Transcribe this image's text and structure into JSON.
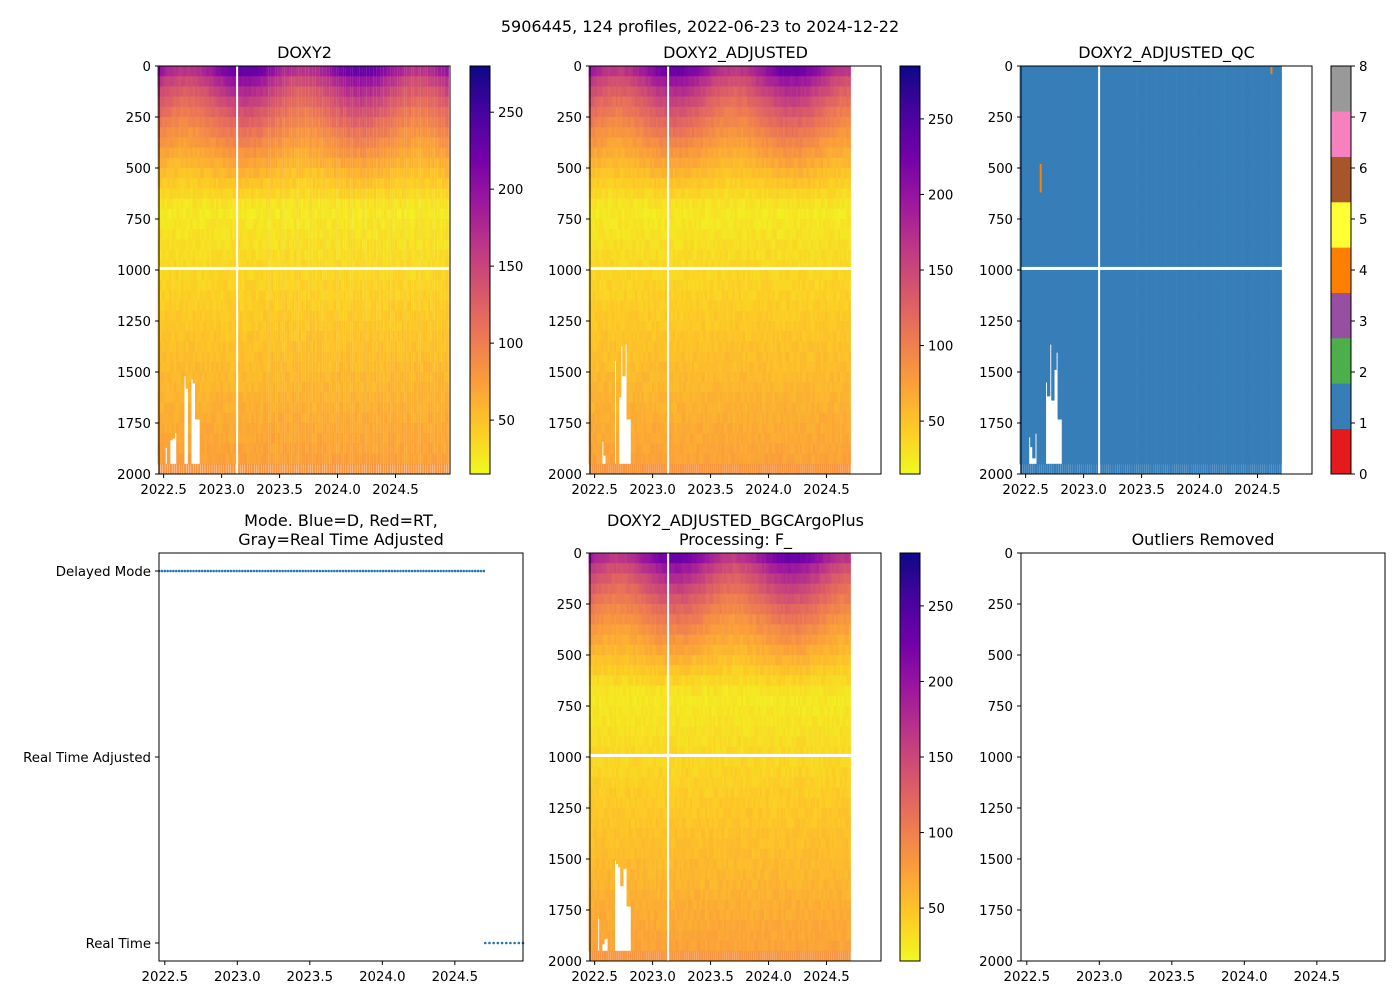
{
  "figure": {
    "suptitle": "5906445, 124 profiles, 2022-06-23 to 2024-12-22",
    "profile_count": 124,
    "date_start": "2022-06-23",
    "date_end": "2024-12-22"
  },
  "colors": {
    "mode_points": "#1f77b4",
    "plasma_stops": [
      "#f0f921",
      "#fdca26",
      "#fb9f3a",
      "#ed7953",
      "#d8576b",
      "#bd3786",
      "#9c179e",
      "#7201a8",
      "#46039f",
      "#0d0887"
    ],
    "qc_classes": [
      "#e41a1c",
      "#377eb8",
      "#4daf4a",
      "#984ea3",
      "#ff7f00",
      "#ffff33",
      "#a65628",
      "#f781bf",
      "#999999"
    ]
  },
  "chart_data": [
    {
      "id": "doxy2",
      "type": "heatmap",
      "title": "DOXY2",
      "xlim": [
        2022.46,
        2024.97
      ],
      "ylim": [
        2000,
        0
      ],
      "xticks": [
        "2022.5",
        "2023.0",
        "2023.5",
        "2024.0",
        "2024.5"
      ],
      "yticks": [
        "0",
        "250",
        "500",
        "750",
        "1000",
        "1250",
        "1500",
        "1750",
        "2000"
      ],
      "colorbar": {
        "cmap": "plasma_r",
        "range": [
          15,
          280
        ],
        "ticks": [
          "50",
          "100",
          "150",
          "200",
          "250"
        ]
      },
      "profiles_end": 2024.95
    },
    {
      "id": "doxy2_adjusted",
      "type": "heatmap",
      "title": "DOXY2_ADJUSTED",
      "xlim": [
        2022.46,
        2024.97
      ],
      "ylim": [
        2000,
        0
      ],
      "xticks": [
        "2022.5",
        "2023.0",
        "2023.5",
        "2024.0",
        "2024.5"
      ],
      "yticks": [
        "0",
        "250",
        "500",
        "750",
        "1000",
        "1250",
        "1500",
        "1750",
        "2000"
      ],
      "colorbar": {
        "cmap": "plasma_r",
        "range": [
          15,
          285
        ],
        "ticks": [
          "50",
          "100",
          "150",
          "200",
          "250"
        ]
      },
      "profiles_end": 2024.7
    },
    {
      "id": "doxy2_adjusted_qc",
      "type": "heatmap",
      "title": "DOXY2_ADJUSTED_QC",
      "xlim": [
        2022.46,
        2024.97
      ],
      "ylim": [
        2000,
        0
      ],
      "xticks": [
        "2022.5",
        "2023.0",
        "2023.5",
        "2024.0",
        "2024.5"
      ],
      "yticks": [
        "0",
        "250",
        "500",
        "750",
        "1000",
        "1250",
        "1500",
        "1750",
        "2000"
      ],
      "colorbar": {
        "cmap": "qc",
        "range": [
          0,
          8
        ],
        "ticks": [
          "0",
          "1",
          "2",
          "3",
          "4",
          "5",
          "6",
          "7",
          "8"
        ]
      },
      "profiles_end": 2024.7,
      "dominant_qc": 1
    },
    {
      "id": "mode",
      "type": "scatter",
      "title": "Mode. Blue=D, Red=RT,\nGray=Real Time Adjusted",
      "title_lines": [
        "Mode. Blue=D, Red=RT,",
        "Gray=Real Time Adjusted"
      ],
      "xlim": [
        2022.46,
        2024.97
      ],
      "xticks": [
        "2022.5",
        "2023.0",
        "2023.5",
        "2024.0",
        "2024.5"
      ],
      "categories": [
        "Delayed Mode",
        "Real Time Adjusted",
        "Real Time"
      ],
      "series": [
        {
          "name": "Delayed Mode",
          "x_start": 2022.46,
          "x_end": 2024.7
        },
        {
          "name": "Real Time",
          "x_start": 2024.71,
          "x_end": 2024.97
        }
      ]
    },
    {
      "id": "doxy2_bgcargoplus",
      "type": "heatmap",
      "title": "DOXY2_ADJUSTED_BGCArgoPlus\nProcessing: F_",
      "title_lines": [
        "DOXY2_ADJUSTED_BGCArgoPlus",
        "Processing: F_"
      ],
      "xlim": [
        2022.46,
        2024.97
      ],
      "ylim": [
        2000,
        0
      ],
      "xticks": [
        "2022.5",
        "2023.0",
        "2023.5",
        "2024.0",
        "2024.5"
      ],
      "yticks": [
        "0",
        "250",
        "500",
        "750",
        "1000",
        "1250",
        "1500",
        "1750",
        "2000"
      ],
      "colorbar": {
        "cmap": "plasma_r",
        "range": [
          15,
          285
        ],
        "ticks": [
          "50",
          "100",
          "150",
          "200",
          "250"
        ]
      },
      "profiles_end": 2024.7
    },
    {
      "id": "outliers",
      "type": "scatter",
      "title": "Outliers Removed",
      "xlim": [
        2022.46,
        2024.97
      ],
      "ylim": [
        2000,
        0
      ],
      "xticks": [
        "2022.5",
        "2023.0",
        "2023.5",
        "2024.0",
        "2024.5"
      ],
      "yticks": [
        "0",
        "250",
        "500",
        "750",
        "1000",
        "1250",
        "1500",
        "1750",
        "2000"
      ],
      "points": []
    }
  ]
}
